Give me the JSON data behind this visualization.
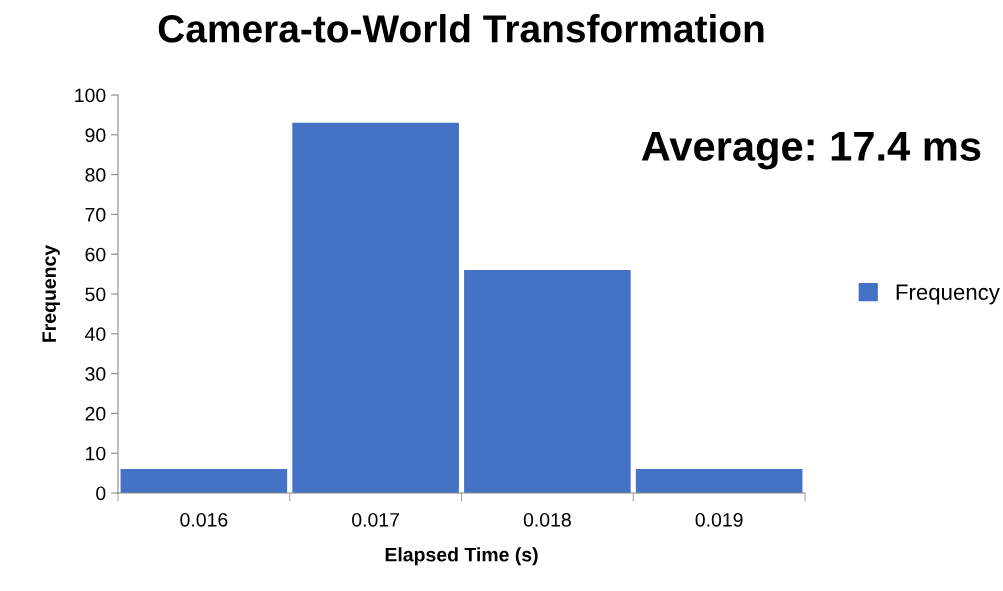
{
  "chart_data": {
    "type": "bar",
    "title": "Camera-to-World Transformation",
    "xlabel": "Elapsed Time (s)",
    "ylabel": "Frequency",
    "categories": [
      "0.016",
      "0.017",
      "0.018",
      "0.019"
    ],
    "series": [
      {
        "name": "Frequency",
        "color": "#4472c4",
        "values": [
          6,
          93,
          56,
          6
        ]
      }
    ],
    "ylim": [
      0,
      100
    ],
    "yticks": [
      0,
      10,
      20,
      30,
      40,
      50,
      60,
      70,
      80,
      90,
      100
    ],
    "grid": false,
    "legend": "right",
    "annotations": [
      "Average: 17.4 ms"
    ]
  }
}
